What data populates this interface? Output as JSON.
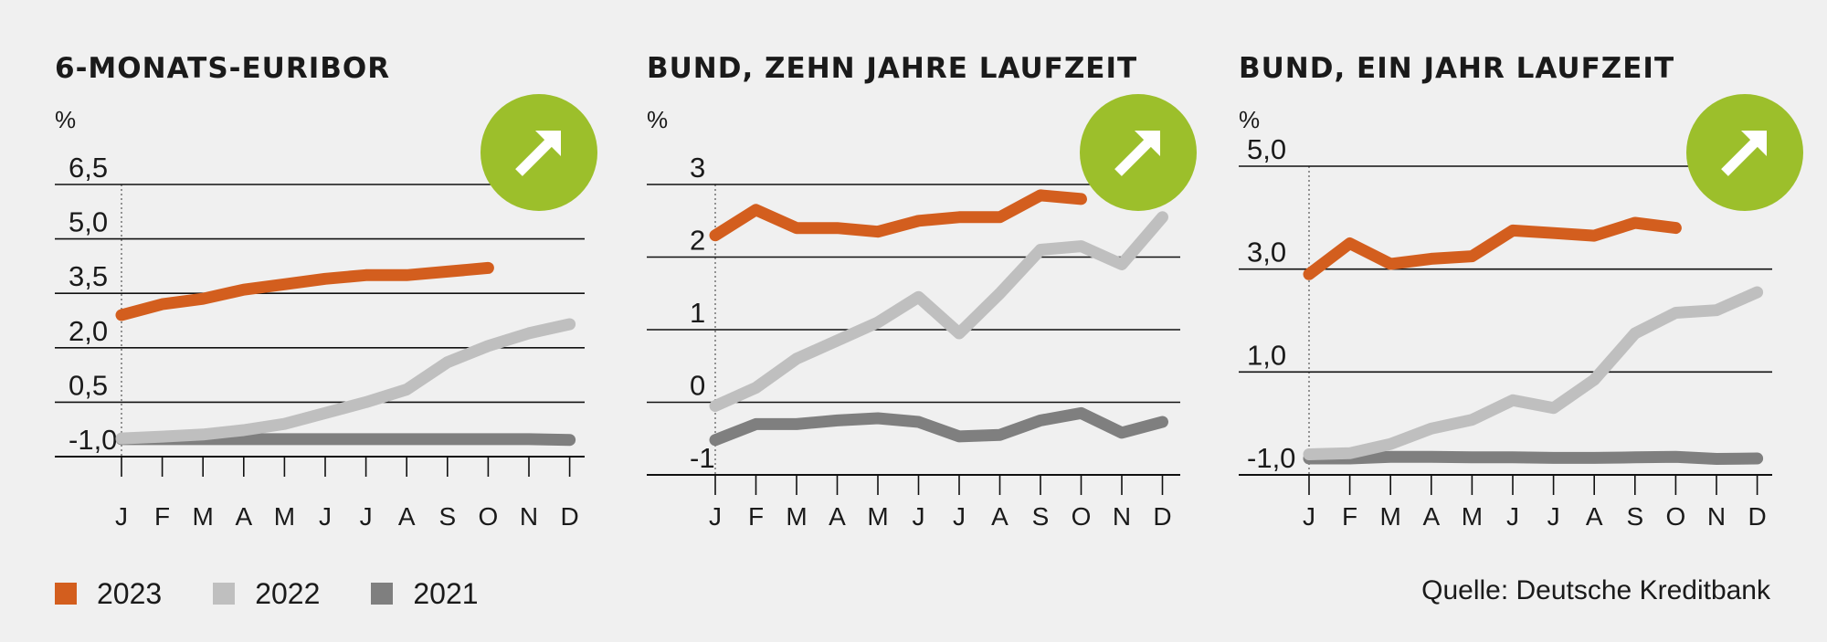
{
  "chart_data": [
    {
      "type": "line",
      "title": "6-MONATS-EURIBOR",
      "ylabel": "%",
      "yticks": [
        {
          "value": 6.5,
          "label": "6,5"
        },
        {
          "value": 5.0,
          "label": "5,0"
        },
        {
          "value": 3.5,
          "label": "3,5"
        },
        {
          "value": 2.0,
          "label": "2,0"
        },
        {
          "value": 0.5,
          "label": "0,5"
        },
        {
          "value": -1.0,
          "label": "-1,0"
        }
      ],
      "ylim": [
        -1.0,
        6.5
      ],
      "trend_icon": "arrow-up-right-icon",
      "categories": [
        "J",
        "F",
        "M",
        "A",
        "M",
        "J",
        "J",
        "A",
        "S",
        "O",
        "N",
        "D"
      ],
      "series": [
        {
          "name": "2021",
          "color": "#7f7f7f",
          "values": [
            -0.52,
            -0.52,
            -0.52,
            -0.52,
            -0.52,
            -0.52,
            -0.52,
            -0.52,
            -0.52,
            -0.52,
            -0.52,
            -0.54
          ]
        },
        {
          "name": "2022",
          "color": "#bfbfbf",
          "values": [
            -0.5,
            -0.45,
            -0.39,
            -0.27,
            -0.1,
            0.2,
            0.5,
            0.85,
            1.6,
            2.05,
            2.4,
            2.65
          ]
        },
        {
          "name": "2023",
          "color": "#d35e1e",
          "values": [
            2.9,
            3.2,
            3.35,
            3.6,
            3.75,
            3.9,
            4.0,
            4.0,
            4.1,
            4.2,
            null,
            null
          ]
        }
      ]
    },
    {
      "type": "line",
      "title": "BUND, ZEHN JAHRE LAUFZEIT",
      "ylabel": "%",
      "yticks": [
        {
          "value": 3,
          "label": "3"
        },
        {
          "value": 2,
          "label": "2"
        },
        {
          "value": 1,
          "label": "1"
        },
        {
          "value": 0,
          "label": "0"
        },
        {
          "value": -1,
          "label": "-1"
        }
      ],
      "ylim": [
        -1,
        3
      ],
      "trend_icon": "arrow-up-right-icon",
      "categories": [
        "J",
        "F",
        "M",
        "A",
        "M",
        "J",
        "J",
        "A",
        "S",
        "O",
        "N",
        "D"
      ],
      "series": [
        {
          "name": "2021",
          "color": "#7f7f7f",
          "values": [
            -0.52,
            -0.3,
            -0.3,
            -0.25,
            -0.22,
            -0.27,
            -0.47,
            -0.45,
            -0.25,
            -0.15,
            -0.42,
            -0.27
          ]
        },
        {
          "name": "2022",
          "color": "#bfbfbf",
          "values": [
            -0.05,
            0.2,
            0.6,
            0.85,
            1.1,
            1.45,
            0.95,
            1.5,
            2.1,
            2.15,
            1.9,
            2.55
          ]
        },
        {
          "name": "2023",
          "color": "#d35e1e",
          "values": [
            2.3,
            2.65,
            2.4,
            2.4,
            2.35,
            2.5,
            2.55,
            2.55,
            2.85,
            2.8,
            null,
            null
          ]
        }
      ]
    },
    {
      "type": "line",
      "title": "BUND, EIN JAHR LAUFZEIT",
      "ylabel": "%",
      "yticks": [
        {
          "value": 5.0,
          "label": "5,0"
        },
        {
          "value": 3.0,
          "label": "3,0"
        },
        {
          "value": 1.0,
          "label": "1,0"
        },
        {
          "value": -1.0,
          "label": "-1,0"
        }
      ],
      "ylim": [
        -1.0,
        5.0
      ],
      "trend_icon": "arrow-up-right-icon",
      "categories": [
        "J",
        "F",
        "M",
        "A",
        "M",
        "J",
        "J",
        "A",
        "S",
        "O",
        "N",
        "D"
      ],
      "series": [
        {
          "name": "2021",
          "color": "#7f7f7f",
          "values": [
            -0.68,
            -0.68,
            -0.65,
            -0.65,
            -0.66,
            -0.66,
            -0.67,
            -0.67,
            -0.66,
            -0.65,
            -0.69,
            -0.68
          ]
        },
        {
          "name": "2022",
          "color": "#bfbfbf",
          "values": [
            -0.6,
            -0.58,
            -0.4,
            -0.1,
            0.07,
            0.45,
            0.3,
            0.85,
            1.75,
            2.15,
            2.2,
            2.55
          ]
        },
        {
          "name": "2023",
          "color": "#d35e1e",
          "values": [
            2.9,
            3.5,
            3.1,
            3.2,
            3.25,
            3.75,
            3.7,
            3.65,
            3.9,
            3.8,
            null,
            null
          ]
        }
      ]
    }
  ],
  "legend": [
    {
      "label": "2023",
      "color": "#d35e1e"
    },
    {
      "label": "2022",
      "color": "#bfbfbf"
    },
    {
      "label": "2021",
      "color": "#7f7f7f"
    }
  ],
  "source": "Quelle: Deutsche Kreditbank"
}
